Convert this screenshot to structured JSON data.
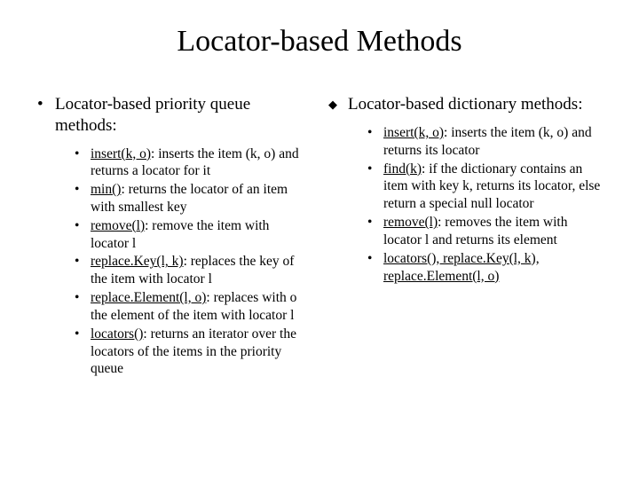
{
  "title": "Locator-based Methods",
  "left": {
    "heading": "Locator-based priority queue methods:",
    "items": [
      {
        "method": "insert(k, o)",
        "desc": ": inserts the item (k, o) and returns a locator for it"
      },
      {
        "method": "min()",
        "desc": ": returns the locator of an item with smallest key"
      },
      {
        "method": "remove(l)",
        "desc": ": remove the item with locator l"
      },
      {
        "method": "replace.Key(l, k)",
        "desc": ": replaces the key of the item with locator l"
      },
      {
        "method": "replace.Element(l, o)",
        "desc": ": replaces with o the element of the item with locator l"
      },
      {
        "method": "locators()",
        "desc": ": returns an iterator over the locators of the items in the priority queue"
      }
    ]
  },
  "right": {
    "heading": "Locator-based dictionary methods:",
    "items": [
      {
        "method": "insert(k, o)",
        "desc": ": inserts the item (k, o) and returns its locator"
      },
      {
        "method": "find(k)",
        "desc": ": if the dictionary contains an item with key k, returns its locator, else return a special null locator"
      },
      {
        "method": "remove(l)",
        "desc": ": removes the item with locator l and returns its element"
      },
      {
        "method": "locators(), replace.Key(l, k), replace.Element(l, o)",
        "desc": ""
      }
    ]
  },
  "colors": {
    "background": "#ffffff",
    "text": "#000000"
  },
  "typography": {
    "title_fontsize": 34,
    "heading_fontsize": 19,
    "body_fontsize": 15.5,
    "font_family": "Times New Roman"
  }
}
